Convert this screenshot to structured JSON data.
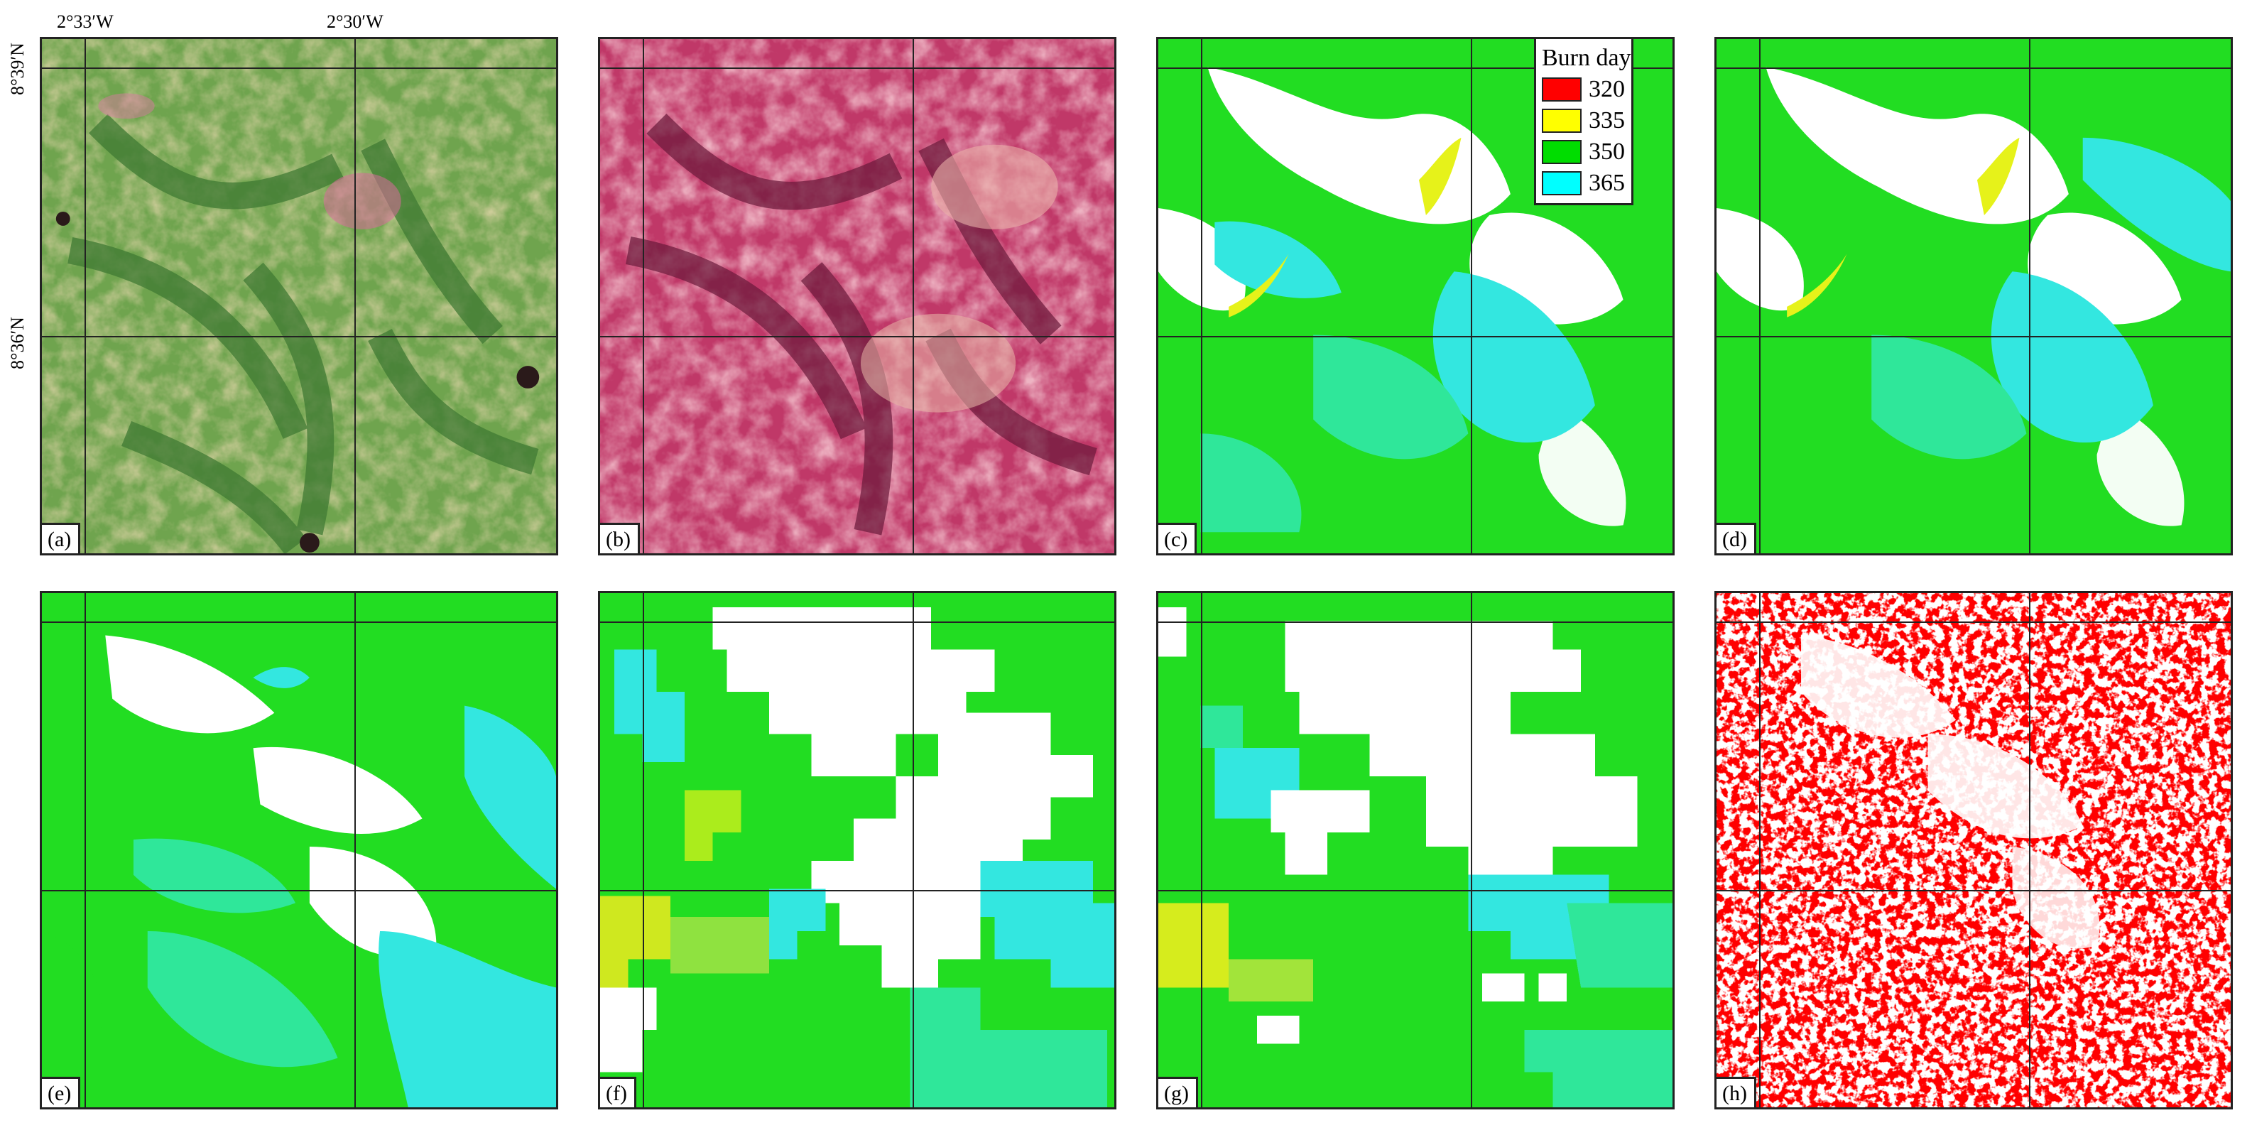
{
  "coordinates": {
    "lon_left": "2°33′W",
    "lon_right": "2°30′W",
    "lat_top": "8°39′N",
    "lat_bottom": "8°36′N"
  },
  "panels": [
    {
      "label": "(a)",
      "kind": "rgb-natural"
    },
    {
      "label": "(b)",
      "kind": "rgb-falsecolor"
    },
    {
      "label": "(c)",
      "kind": "burnday-fine"
    },
    {
      "label": "(d)",
      "kind": "burnday-fine"
    },
    {
      "label": "(e)",
      "kind": "burnday-medium"
    },
    {
      "label": "(f)",
      "kind": "burnday-coarse"
    },
    {
      "label": "(g)",
      "kind": "burnday-coarser"
    },
    {
      "label": "(h)",
      "kind": "burned-binary"
    }
  ],
  "legend": {
    "title": "Burn day",
    "entries": [
      {
        "value": "320",
        "color": "#ff0000"
      },
      {
        "value": "335",
        "color": "#ffff00"
      },
      {
        "value": "350",
        "color": "#00dd00"
      },
      {
        "value": "365",
        "color": "#00ffff"
      }
    ]
  },
  "colors": {
    "burn_fine_main": "#22dd22",
    "burn_late": "#33e7e0",
    "burn_mixed": "#2fe79a",
    "burn_early": "#e6f21a",
    "burned_binary": "#ff0000",
    "rgb_a_base": "#7cab55",
    "rgb_b_base": "#c83870"
  }
}
